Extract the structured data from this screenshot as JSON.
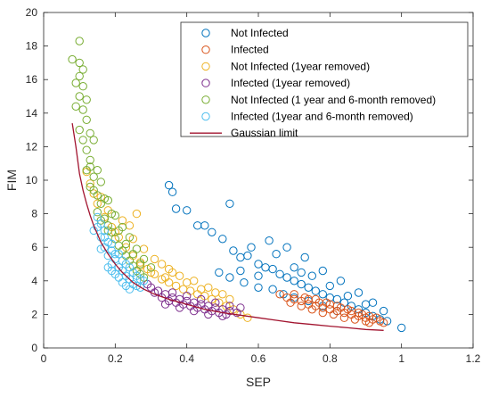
{
  "chart_data": {
    "type": "scatter",
    "xlabel": "SEP",
    "ylabel": "FIM",
    "xlim": [
      0,
      1.2
    ],
    "ylim": [
      0,
      20
    ],
    "xticks": [
      "0",
      "0.2",
      "0.4",
      "0.6",
      "0.8",
      "1",
      "1.2"
    ],
    "yticks": [
      "0",
      "2",
      "4",
      "6",
      "8",
      "10",
      "12",
      "14",
      "16",
      "18",
      "20"
    ],
    "grid": false,
    "legend_position": "top-right",
    "series": [
      {
        "name": "Not Infected",
        "color": "#0072BD",
        "marker": "circle",
        "points": [
          [
            0.35,
            9.7
          ],
          [
            0.36,
            9.3
          ],
          [
            0.37,
            8.3
          ],
          [
            0.4,
            8.2
          ],
          [
            0.52,
            8.6
          ],
          [
            0.43,
            7.3
          ],
          [
            0.45,
            7.3
          ],
          [
            0.47,
            6.9
          ],
          [
            0.5,
            6.5
          ],
          [
            0.53,
            5.8
          ],
          [
            0.55,
            5.4
          ],
          [
            0.57,
            5.5
          ],
          [
            0.6,
            5.0
          ],
          [
            0.62,
            4.8
          ],
          [
            0.64,
            4.7
          ],
          [
            0.66,
            4.4
          ],
          [
            0.68,
            4.2
          ],
          [
            0.7,
            4.0
          ],
          [
            0.72,
            3.8
          ],
          [
            0.74,
            3.6
          ],
          [
            0.76,
            3.4
          ],
          [
            0.78,
            3.2
          ],
          [
            0.8,
            3.0
          ],
          [
            0.82,
            2.9
          ],
          [
            0.84,
            2.7
          ],
          [
            0.86,
            2.5
          ],
          [
            0.88,
            2.3
          ],
          [
            0.9,
            2.1
          ],
          [
            0.92,
            1.9
          ],
          [
            0.94,
            1.7
          ],
          [
            0.96,
            1.6
          ],
          [
            1.0,
            1.2
          ],
          [
            0.58,
            6.0
          ],
          [
            0.63,
            6.4
          ],
          [
            0.68,
            6.0
          ],
          [
            0.73,
            5.4
          ],
          [
            0.78,
            4.6
          ],
          [
            0.83,
            4.0
          ],
          [
            0.88,
            3.3
          ],
          [
            0.92,
            2.7
          ],
          [
            0.49,
            4.5
          ],
          [
            0.52,
            4.2
          ],
          [
            0.56,
            3.9
          ],
          [
            0.6,
            3.6
          ],
          [
            0.64,
            3.5
          ],
          [
            0.67,
            3.2
          ],
          [
            0.7,
            3.0
          ],
          [
            0.74,
            2.8
          ],
          [
            0.78,
            2.5
          ],
          [
            0.82,
            2.2
          ],
          [
            0.65,
            5.6
          ],
          [
            0.7,
            4.8
          ],
          [
            0.75,
            4.3
          ],
          [
            0.8,
            3.7
          ],
          [
            0.85,
            3.1
          ],
          [
            0.9,
            2.6
          ],
          [
            0.6,
            4.3
          ],
          [
            0.55,
            4.6
          ],
          [
            0.72,
            4.5
          ],
          [
            0.95,
            2.2
          ]
        ]
      },
      {
        "name": "Infected",
        "color": "#D95319",
        "marker": "circle",
        "points": [
          [
            0.66,
            3.2
          ],
          [
            0.68,
            3.0
          ],
          [
            0.7,
            2.9
          ],
          [
            0.72,
            2.8
          ],
          [
            0.74,
            2.6
          ],
          [
            0.76,
            2.5
          ],
          [
            0.78,
            2.4
          ],
          [
            0.8,
            2.3
          ],
          [
            0.82,
            2.2
          ],
          [
            0.84,
            2.1
          ],
          [
            0.86,
            2.0
          ],
          [
            0.88,
            1.9
          ],
          [
            0.9,
            1.8
          ],
          [
            0.92,
            1.7
          ],
          [
            0.94,
            1.6
          ],
          [
            0.95,
            1.5
          ],
          [
            0.7,
            3.2
          ],
          [
            0.73,
            3.0
          ],
          [
            0.76,
            2.9
          ],
          [
            0.79,
            2.7
          ],
          [
            0.82,
            2.5
          ],
          [
            0.85,
            2.3
          ],
          [
            0.88,
            2.1
          ],
          [
            0.91,
            1.9
          ],
          [
            0.72,
            2.5
          ],
          [
            0.75,
            2.3
          ],
          [
            0.78,
            2.1
          ],
          [
            0.81,
            2.0
          ],
          [
            0.84,
            1.8
          ],
          [
            0.87,
            1.7
          ],
          [
            0.9,
            1.6
          ],
          [
            0.8,
            2.6
          ],
          [
            0.83,
            2.4
          ],
          [
            0.86,
            2.2
          ],
          [
            0.89,
            2.0
          ],
          [
            0.77,
            2.7
          ],
          [
            0.74,
            2.9
          ],
          [
            0.93,
            1.8
          ],
          [
            0.69,
            2.7
          ],
          [
            0.91,
            1.5
          ]
        ]
      },
      {
        "name": "Not Infected (1year removed)",
        "color": "#EDB120",
        "marker": "circle",
        "points": [
          [
            0.12,
            10.5
          ],
          [
            0.13,
            9.8
          ],
          [
            0.14,
            9.2
          ],
          [
            0.15,
            8.6
          ],
          [
            0.17,
            7.8
          ],
          [
            0.19,
            7.2
          ],
          [
            0.21,
            6.6
          ],
          [
            0.23,
            6.0
          ],
          [
            0.25,
            5.5
          ],
          [
            0.27,
            5.1
          ],
          [
            0.29,
            4.7
          ],
          [
            0.31,
            4.4
          ],
          [
            0.33,
            4.1
          ],
          [
            0.35,
            3.9
          ],
          [
            0.37,
            3.7
          ],
          [
            0.39,
            3.5
          ],
          [
            0.41,
            3.4
          ],
          [
            0.43,
            3.2
          ],
          [
            0.45,
            3.1
          ],
          [
            0.47,
            2.9
          ],
          [
            0.49,
            2.7
          ],
          [
            0.51,
            2.5
          ],
          [
            0.53,
            2.3
          ],
          [
            0.55,
            2.0
          ],
          [
            0.57,
            1.8
          ],
          [
            0.22,
            7.6
          ],
          [
            0.25,
            6.5
          ],
          [
            0.28,
            5.9
          ],
          [
            0.31,
            5.3
          ],
          [
            0.35,
            4.7
          ],
          [
            0.38,
            4.3
          ],
          [
            0.42,
            4.0
          ],
          [
            0.46,
            3.6
          ],
          [
            0.5,
            3.2
          ],
          [
            0.26,
            8.0
          ],
          [
            0.24,
            7.3
          ],
          [
            0.33,
            5.0
          ],
          [
            0.4,
            3.9
          ],
          [
            0.44,
            3.5
          ],
          [
            0.48,
            3.3
          ],
          [
            0.52,
            2.9
          ],
          [
            0.3,
            4.5
          ],
          [
            0.27,
            4.9
          ],
          [
            0.34,
            4.2
          ],
          [
            0.36,
            4.5
          ],
          [
            0.2,
            6.9
          ],
          [
            0.18,
            8.2
          ],
          [
            0.16,
            9.0
          ]
        ]
      },
      {
        "name": "Infected (1year removed)",
        "color": "#7E2F8E",
        "marker": "circle",
        "points": [
          [
            0.3,
            3.6
          ],
          [
            0.32,
            3.4
          ],
          [
            0.34,
            3.2
          ],
          [
            0.36,
            3.0
          ],
          [
            0.38,
            2.9
          ],
          [
            0.4,
            2.8
          ],
          [
            0.42,
            2.7
          ],
          [
            0.44,
            2.6
          ],
          [
            0.46,
            2.5
          ],
          [
            0.48,
            2.4
          ],
          [
            0.5,
            2.3
          ],
          [
            0.52,
            2.2
          ],
          [
            0.54,
            2.1
          ],
          [
            0.33,
            3.0
          ],
          [
            0.35,
            2.8
          ],
          [
            0.37,
            2.7
          ],
          [
            0.39,
            2.6
          ],
          [
            0.41,
            2.5
          ],
          [
            0.43,
            2.4
          ],
          [
            0.45,
            2.3
          ],
          [
            0.47,
            2.2
          ],
          [
            0.49,
            2.1
          ],
          [
            0.51,
            2.0
          ],
          [
            0.36,
            3.3
          ],
          [
            0.4,
            3.1
          ],
          [
            0.44,
            2.9
          ],
          [
            0.48,
            2.7
          ],
          [
            0.52,
            2.5
          ],
          [
            0.31,
            3.3
          ],
          [
            0.38,
            2.4
          ],
          [
            0.42,
            2.2
          ],
          [
            0.46,
            2.0
          ],
          [
            0.5,
            1.9
          ],
          [
            0.29,
            3.8
          ],
          [
            0.55,
            2.4
          ],
          [
            0.34,
            2.6
          ]
        ]
      },
      {
        "name": "Not Infected (1 year and 6-month removed)",
        "color": "#77AC30",
        "marker": "circle",
        "points": [
          [
            0.1,
            18.3
          ],
          [
            0.08,
            17.2
          ],
          [
            0.1,
            17.0
          ],
          [
            0.11,
            16.6
          ],
          [
            0.09,
            15.8
          ],
          [
            0.1,
            15.0
          ],
          [
            0.11,
            14.2
          ],
          [
            0.12,
            13.6
          ],
          [
            0.1,
            13.0
          ],
          [
            0.11,
            12.4
          ],
          [
            0.12,
            11.8
          ],
          [
            0.13,
            11.2
          ],
          [
            0.12,
            10.6
          ],
          [
            0.14,
            10.2
          ],
          [
            0.13,
            9.6
          ],
          [
            0.15,
            9.1
          ],
          [
            0.16,
            8.6
          ],
          [
            0.15,
            8.1
          ],
          [
            0.17,
            7.7
          ],
          [
            0.18,
            7.3
          ],
          [
            0.19,
            6.9
          ],
          [
            0.2,
            6.5
          ],
          [
            0.21,
            6.1
          ],
          [
            0.22,
            5.8
          ],
          [
            0.23,
            5.5
          ],
          [
            0.24,
            5.2
          ],
          [
            0.25,
            4.9
          ],
          [
            0.26,
            4.6
          ],
          [
            0.27,
            4.4
          ],
          [
            0.28,
            4.2
          ],
          [
            0.09,
            14.4
          ],
          [
            0.11,
            15.6
          ],
          [
            0.12,
            14.8
          ],
          [
            0.14,
            12.4
          ],
          [
            0.13,
            10.8
          ],
          [
            0.16,
            9.9
          ],
          [
            0.18,
            8.8
          ],
          [
            0.2,
            7.9
          ],
          [
            0.22,
            7.2
          ],
          [
            0.24,
            6.6
          ],
          [
            0.26,
            5.9
          ],
          [
            0.28,
            5.3
          ],
          [
            0.3,
            4.8
          ],
          [
            0.1,
            16.2
          ],
          [
            0.13,
            12.8
          ],
          [
            0.15,
            10.6
          ],
          [
            0.17,
            8.9
          ],
          [
            0.19,
            8.0
          ],
          [
            0.21,
            7.0
          ],
          [
            0.23,
            6.2
          ],
          [
            0.25,
            5.6
          ],
          [
            0.27,
            5.0
          ],
          [
            0.14,
            9.4
          ],
          [
            0.16,
            7.6
          ],
          [
            0.18,
            7.0
          ]
        ]
      },
      {
        "name": "Infected (1year and 6-month removed)",
        "color": "#4DBEEE",
        "marker": "circle",
        "points": [
          [
            0.15,
            7.8
          ],
          [
            0.16,
            7.4
          ],
          [
            0.17,
            7.0
          ],
          [
            0.16,
            6.6
          ],
          [
            0.18,
            6.3
          ],
          [
            0.17,
            6.0
          ],
          [
            0.19,
            5.8
          ],
          [
            0.18,
            5.5
          ],
          [
            0.2,
            5.3
          ],
          [
            0.19,
            5.0
          ],
          [
            0.21,
            4.8
          ],
          [
            0.22,
            4.6
          ],
          [
            0.2,
            4.4
          ],
          [
            0.23,
            4.3
          ],
          [
            0.24,
            4.1
          ],
          [
            0.22,
            3.9
          ],
          [
            0.25,
            3.8
          ],
          [
            0.26,
            3.7
          ],
          [
            0.24,
            3.5
          ],
          [
            0.27,
            3.6
          ],
          [
            0.15,
            7.2
          ],
          [
            0.17,
            6.6
          ],
          [
            0.19,
            6.2
          ],
          [
            0.21,
            5.6
          ],
          [
            0.23,
            5.0
          ],
          [
            0.25,
            4.5
          ],
          [
            0.18,
            4.8
          ],
          [
            0.2,
            5.6
          ],
          [
            0.22,
            5.2
          ],
          [
            0.24,
            4.8
          ],
          [
            0.26,
            4.3
          ],
          [
            0.28,
            4.0
          ],
          [
            0.16,
            5.9
          ],
          [
            0.14,
            7.0
          ],
          [
            0.21,
            4.2
          ],
          [
            0.23,
            3.7
          ],
          [
            0.19,
            4.6
          ],
          [
            0.27,
            4.1
          ]
        ]
      }
    ],
    "line_series": {
      "name": "Gaussian limit",
      "color": "#A2142F",
      "x": [
        0.08,
        0.09,
        0.1,
        0.11,
        0.12,
        0.13,
        0.14,
        0.15,
        0.16,
        0.18,
        0.2,
        0.22,
        0.25,
        0.28,
        0.31,
        0.35,
        0.4,
        0.45,
        0.5,
        0.55,
        0.6,
        0.65,
        0.7,
        0.75,
        0.8,
        0.85,
        0.9,
        0.95
      ],
      "y": [
        13.4,
        12.0,
        10.4,
        9.4,
        8.6,
        7.9,
        7.3,
        6.8,
        6.3,
        5.6,
        5.0,
        4.5,
        3.9,
        3.5,
        3.2,
        2.9,
        2.6,
        2.3,
        2.1,
        1.95,
        1.8,
        1.65,
        1.5,
        1.4,
        1.3,
        1.2,
        1.1,
        1.05
      ]
    }
  }
}
